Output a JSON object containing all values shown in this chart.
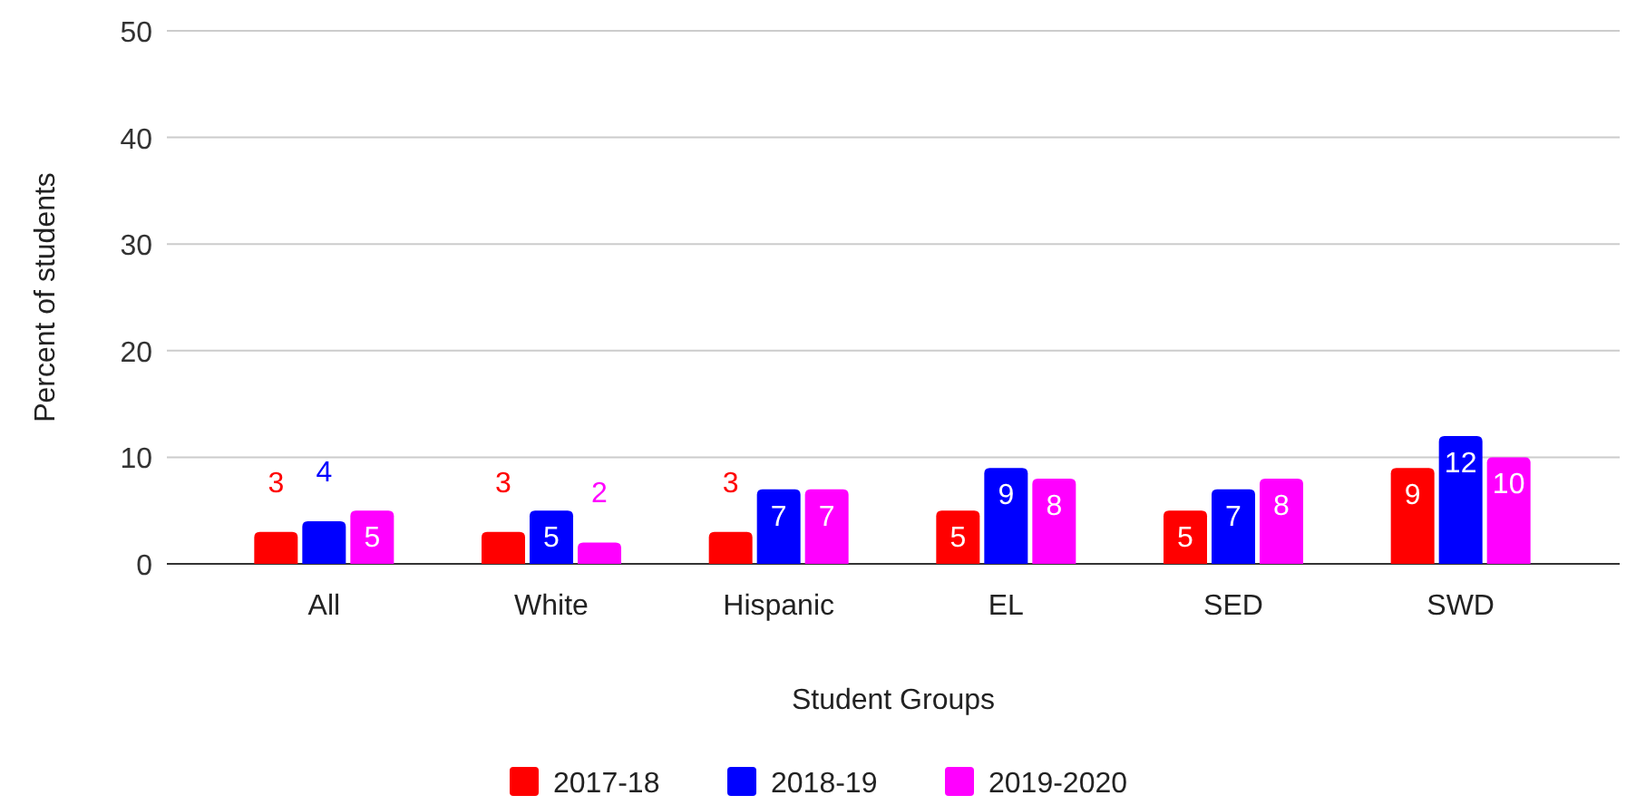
{
  "chart_data": {
    "type": "bar",
    "xlabel": "Student Groups",
    "ylabel": "Percent of students",
    "categories": [
      "All",
      "White",
      "Hispanic",
      "EL",
      "SED",
      "SWD"
    ],
    "series": [
      {
        "name": "2017-18",
        "color": "#ff0000",
        "values": [
          3,
          3,
          3,
          5,
          5,
          9
        ]
      },
      {
        "name": "2018-19",
        "color": "#0000ff",
        "values": [
          4,
          5,
          7,
          9,
          7,
          12
        ]
      },
      {
        "name": "2019-2020",
        "color": "#ff00ff",
        "values": [
          5,
          2,
          7,
          8,
          8,
          10
        ]
      }
    ],
    "ylim": [
      0,
      50
    ],
    "yticks": [
      0,
      10,
      20,
      30,
      40,
      50
    ],
    "grid": "y",
    "legend": "bottom",
    "data_labels": true
  }
}
